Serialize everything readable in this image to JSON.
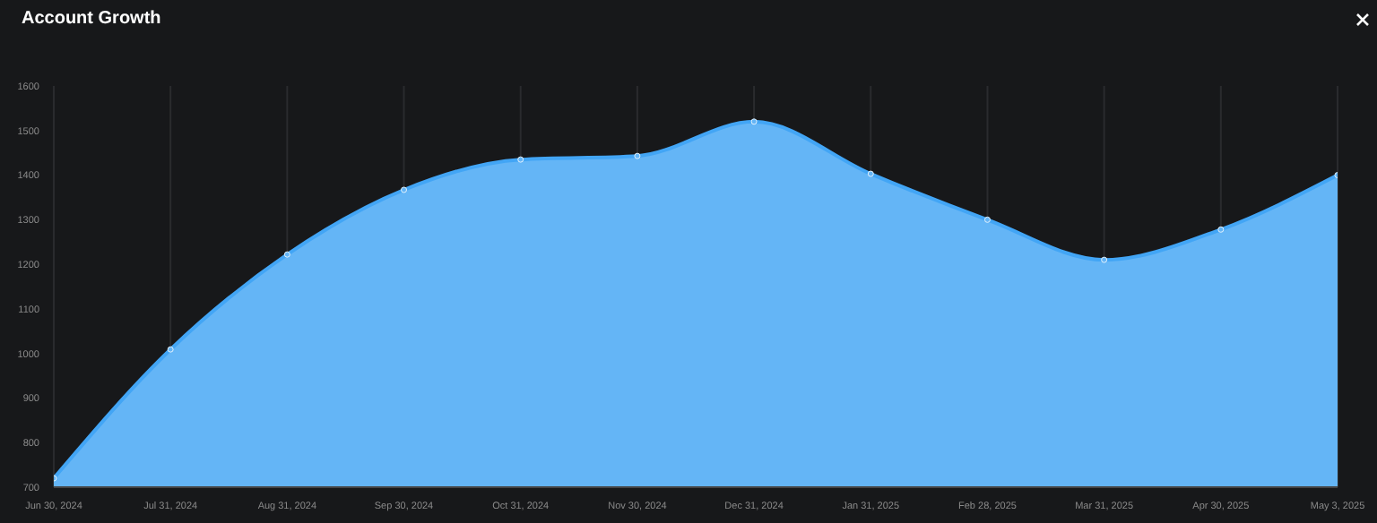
{
  "chart_data": {
    "type": "area",
    "title": "Account Growth",
    "categories": [
      "Jun 30, 2024",
      "Jul 31, 2024",
      "Aug 31, 2024",
      "Sep 30, 2024",
      "Oct 31, 2024",
      "Nov 30, 2024",
      "Dec 31, 2024",
      "Jan 31, 2025",
      "Feb 28, 2025",
      "Mar 31, 2025",
      "Apr 30, 2025",
      "May 3, 2025"
    ],
    "series": [
      {
        "color": "#64b5f6",
        "values": [
          720,
          1009,
          1222,
          1367,
          1435,
          1443,
          1520,
          1403,
          1300,
          1210,
          1278,
          1400
        ]
      }
    ],
    "ylim": [
      700,
      1600
    ],
    "yticks": [
      700,
      800,
      900,
      1000,
      1100,
      1200,
      1300,
      1400,
      1500,
      1600
    ],
    "grid": "x",
    "marker": "circle"
  }
}
